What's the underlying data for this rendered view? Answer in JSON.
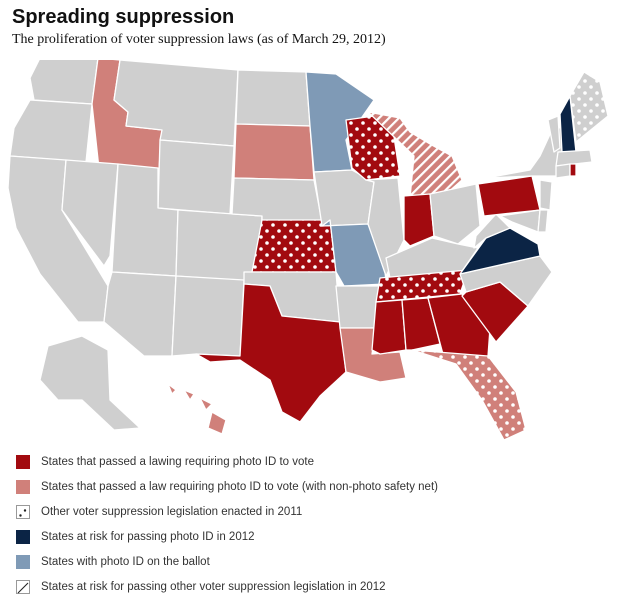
{
  "title": "Spreading suppression",
  "subtitle": "The proliferation of voter suppression laws (as of March 29, 2012)",
  "colors": {
    "photo_id": "#a20a0f",
    "photo_id_safety_net": "#d0807a",
    "at_risk_photo_id": "#0b2445",
    "on_ballot": "#7f9ab6",
    "other": "#cfcfcf",
    "pattern": "#ffffff"
  },
  "legend": [
    {
      "key": "photo_id",
      "pattern": "solid",
      "label": "States that passed a lawing requiring photo ID to vote"
    },
    {
      "key": "photo_id_safety_net",
      "pattern": "solid",
      "label": "States that passed a law requiring photo ID to vote (with non-photo safety net)"
    },
    {
      "key": "other_2011",
      "pattern": "dots",
      "label": "Other voter suppression legislation enacted in 2011"
    },
    {
      "key": "at_risk_photo_id",
      "pattern": "solid",
      "label": "States at risk for passing photo ID in 2012"
    },
    {
      "key": "on_ballot",
      "pattern": "solid",
      "label": "States with photo ID on the ballot"
    },
    {
      "key": "at_risk_other",
      "pattern": "hatch",
      "label": "States at risk for passing other voter suppression legislation in 2012"
    }
  ],
  "states": [
    {
      "name": "Texas",
      "category": "photo_id",
      "pattern": "none"
    },
    {
      "name": "Georgia",
      "category": "photo_id",
      "pattern": "none"
    },
    {
      "name": "Alabama",
      "category": "photo_id",
      "pattern": "none"
    },
    {
      "name": "Mississippi",
      "category": "photo_id",
      "pattern": "none"
    },
    {
      "name": "South Carolina",
      "category": "photo_id",
      "pattern": "none"
    },
    {
      "name": "Indiana",
      "category": "photo_id",
      "pattern": "none"
    },
    {
      "name": "Pennsylvania",
      "category": "photo_id",
      "pattern": "none"
    },
    {
      "name": "Rhode Island",
      "category": "photo_id",
      "pattern": "none"
    },
    {
      "name": "Wisconsin",
      "category": "photo_id",
      "pattern": "dots"
    },
    {
      "name": "Kansas",
      "category": "photo_id",
      "pattern": "dots"
    },
    {
      "name": "Tennessee",
      "category": "photo_id",
      "pattern": "dots"
    },
    {
      "name": "Idaho",
      "category": "photo_id_safety_net",
      "pattern": "none"
    },
    {
      "name": "South Dakota",
      "category": "photo_id_safety_net",
      "pattern": "none"
    },
    {
      "name": "Louisiana",
      "category": "photo_id_safety_net",
      "pattern": "none"
    },
    {
      "name": "Hawaii",
      "category": "photo_id_safety_net",
      "pattern": "none"
    },
    {
      "name": "Florida",
      "category": "photo_id_safety_net",
      "pattern": "dots"
    },
    {
      "name": "Michigan",
      "category": "photo_id_safety_net",
      "pattern": "hatch"
    },
    {
      "name": "Virginia",
      "category": "at_risk_photo_id",
      "pattern": "none"
    },
    {
      "name": "New Hampshire",
      "category": "at_risk_photo_id",
      "pattern": "none"
    },
    {
      "name": "Minnesota",
      "category": "on_ballot",
      "pattern": "none"
    },
    {
      "name": "Missouri",
      "category": "on_ballot",
      "pattern": "none"
    },
    {
      "name": "Maine",
      "category": "other",
      "pattern": "dots"
    }
  ]
}
